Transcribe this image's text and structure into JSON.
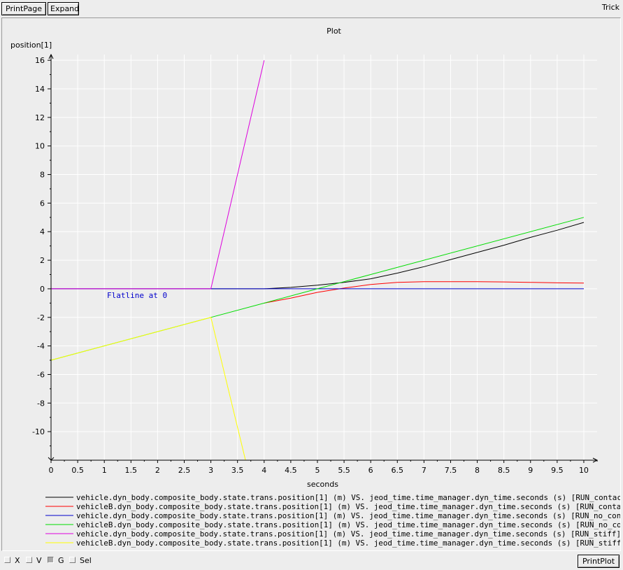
{
  "toolbar": {
    "print_page_label": "PrintPage",
    "expand_label": "Expand",
    "app_title": "Trick"
  },
  "bottom_bar": {
    "checkboxes": [
      {
        "label": "X",
        "checked": false
      },
      {
        "label": "V",
        "checked": false
      },
      {
        "label": "G",
        "checked": true
      },
      {
        "label": "Sel",
        "checked": false
      }
    ],
    "print_plot_label": "PrintPlot"
  },
  "colors": {
    "background": "#ededed",
    "grid": "#ffffff",
    "axis": "#000000"
  },
  "chart_data": {
    "type": "line",
    "title": "Plot",
    "xlabel": "seconds",
    "ylabel": "position[1]",
    "xlim": [
      0,
      10.25
    ],
    "ylim": [
      -12,
      16.4
    ],
    "xticks": [
      "0",
      "0.5",
      "1",
      "1.5",
      "2",
      "2.5",
      "3",
      "3.5",
      "4",
      "4.5",
      "5",
      "5.5",
      "6",
      "6.5",
      "7",
      "7.5",
      "8",
      "8.5",
      "9",
      "9.5",
      "10"
    ],
    "yticks": [
      "16",
      "14",
      "12",
      "10",
      "8",
      "6",
      "4",
      "2",
      "0",
      "-2",
      "-4",
      "-6",
      "-8",
      "-10"
    ],
    "grid": true,
    "legend_position": "bottom",
    "annotation": {
      "text": "Flatline at 0",
      "x": 1.05,
      "y": -0.45,
      "color": "#0000cc"
    },
    "series": [
      {
        "name": "vehicle.dyn_body.composite_body.state.trans.position[1] (m) VS. jeod_time.time_manager.dyn_time.seconds (s) [RUN_contact]",
        "color": "#000000",
        "x": [
          0,
          3,
          4,
          4.5,
          5,
          5.5,
          6,
          6.5,
          7,
          7.5,
          8,
          8.5,
          9,
          9.5,
          10
        ],
        "y": [
          0,
          0,
          0,
          0.1,
          0.25,
          0.45,
          0.7,
          1.1,
          1.55,
          2.05,
          2.55,
          3.05,
          3.6,
          4.1,
          4.65
        ]
      },
      {
        "name": "vehicleB.dyn_body.composite_body.state.trans.position[1] (m) VS. jeod_time.time_manager.dyn_time.seconds (s) [RUN_contact]",
        "color": "#ff0000",
        "x": [
          4,
          4.5,
          5,
          5.5,
          6,
          6.5,
          7,
          7.5,
          8,
          8.5,
          9,
          9.5,
          10
        ],
        "y": [
          -1,
          -0.65,
          -0.25,
          0.05,
          0.3,
          0.45,
          0.5,
          0.5,
          0.5,
          0.48,
          0.45,
          0.42,
          0.4
        ]
      },
      {
        "name": "vehicle.dyn_body.composite_body.state.trans.position[1] (m) VS. jeod_time.time_manager.dyn_time.seconds (s) [RUN_no_contact]",
        "color": "#0000cc",
        "x": [
          0,
          10
        ],
        "y": [
          0,
          0
        ]
      },
      {
        "name": "vehicleB.dyn_body.composite_body.state.trans.position[1] (m) VS. jeod_time.time_manager.dyn_time.seconds (s) [RUN_no_contact]",
        "color": "#00dd00",
        "x": [
          0,
          3,
          4,
          5,
          5.5,
          6,
          10
        ],
        "y": [
          -5,
          -2,
          -1,
          0,
          0.5,
          1,
          5
        ]
      },
      {
        "name": "vehicle.dyn_body.composite_body.state.trans.position[1] (m) VS. jeod_time.time_manager.dyn_time.seconds (s) [RUN_stiff]",
        "color": "#dd00dd",
        "x": [
          0,
          3,
          4
        ],
        "y": [
          0,
          0,
          16
        ]
      },
      {
        "name": "vehicleB.dyn_body.composite_body.state.trans.position[1] (m) VS. jeod_time.time_manager.dyn_time.seconds (s) [RUN_stiff]",
        "color": "#ffff00",
        "x": [
          0,
          3,
          3.65
        ],
        "y": [
          -5,
          -2,
          -12
        ]
      }
    ]
  }
}
